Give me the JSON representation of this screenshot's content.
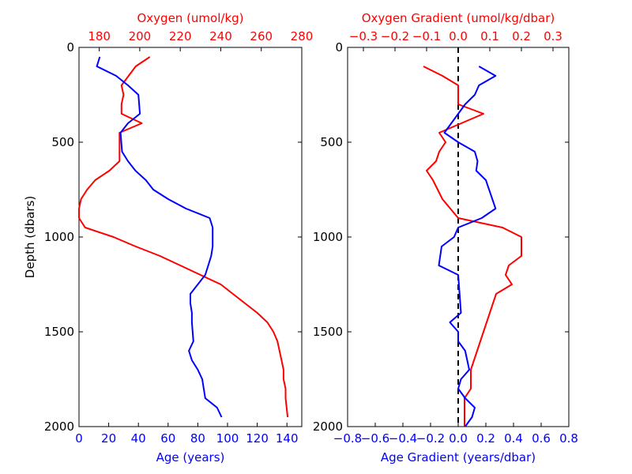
{
  "chart_data": [
    {
      "type": "line",
      "ylabel": "Depth (dbars)",
      "ylim": [
        2000,
        0
      ],
      "yticks": [
        0,
        500,
        1000,
        1500,
        2000
      ],
      "bottom_axis": {
        "label": "Age (years)",
        "lim": [
          0,
          150
        ],
        "ticks": [
          0,
          20,
          40,
          60,
          80,
          100,
          120,
          140
        ],
        "color": "#0000ff"
      },
      "top_axis": {
        "label": "Oxygen (umol/kg)",
        "lim": [
          170,
          280
        ],
        "ticks": [
          180,
          200,
          220,
          240,
          260,
          280
        ],
        "color": "#ff0000"
      },
      "series": [
        {
          "axis": "top",
          "color": "#ff0000",
          "x": [
            205,
            198,
            191,
            192,
            191,
            191,
            201,
            190,
            190,
            185,
            178,
            174,
            171,
            170,
            170,
            173,
            187,
            198,
            210,
            220,
            230,
            240,
            246,
            252,
            258,
            263,
            266,
            268,
            269,
            270,
            271,
            271,
            272,
            272,
            273
          ],
          "y": [
            50,
            100,
            200,
            250,
            300,
            350,
            400,
            450,
            600,
            650,
            700,
            750,
            800,
            850,
            900,
            950,
            1000,
            1050,
            1100,
            1150,
            1200,
            1250,
            1300,
            1350,
            1400,
            1450,
            1500,
            1550,
            1600,
            1650,
            1700,
            1750,
            1800,
            1850,
            1950
          ]
        },
        {
          "axis": "bottom",
          "color": "#0000ff",
          "x": [
            14,
            12,
            25,
            33,
            40,
            41,
            33,
            28,
            29,
            33,
            38,
            45,
            50,
            60,
            72,
            88,
            90,
            90,
            90,
            89,
            87,
            85,
            80,
            75,
            75,
            76,
            76,
            77,
            74,
            76,
            80,
            83,
            84,
            85,
            93,
            96
          ],
          "y": [
            50,
            100,
            150,
            200,
            250,
            350,
            400,
            450,
            550,
            600,
            650,
            700,
            750,
            800,
            850,
            900,
            950,
            1000,
            1050,
            1100,
            1150,
            1200,
            1250,
            1300,
            1350,
            1400,
            1450,
            1550,
            1600,
            1650,
            1700,
            1750,
            1800,
            1850,
            1900,
            1950
          ]
        }
      ]
    },
    {
      "type": "line",
      "ylim": [
        2000,
        0
      ],
      "yticks": [
        0,
        500,
        1000,
        1500,
        2000
      ],
      "bottom_axis": {
        "label": "Age Gradient (years/dbar)",
        "lim": [
          -0.8,
          0.8
        ],
        "ticks": [
          -0.8,
          -0.6,
          -0.4,
          -0.2,
          0.0,
          0.2,
          0.4,
          0.6,
          0.8
        ],
        "tick_labels": [
          "−0.8",
          "−0.6",
          "−0.4",
          "−0.2",
          "0.0",
          "0.2",
          "0.4",
          "0.6",
          "0.8"
        ],
        "color": "#0000ff"
      },
      "top_axis": {
        "label": "Oxygen Gradient (umol/kg/dbar)",
        "lim": [
          -0.35,
          0.35
        ],
        "ticks": [
          -0.3,
          -0.2,
          -0.1,
          0.0,
          0.1,
          0.2,
          0.3
        ],
        "tick_labels": [
          "−0.3",
          "−0.2",
          "−0.1",
          "0.0",
          "0.1",
          "0.2",
          "0.3"
        ],
        "color": "#ff0000"
      },
      "reference_line": {
        "x": 0.0,
        "style": "dashed",
        "color": "#000000"
      },
      "series": [
        {
          "axis": "top",
          "color": "#ff0000",
          "x": [
            -0.11,
            -0.05,
            0.0,
            0.0,
            0.08,
            -0.06,
            -0.04,
            -0.06,
            -0.07,
            -0.1,
            -0.08,
            -0.05,
            0.0,
            0.14,
            0.2,
            0.2,
            0.16,
            0.15,
            0.17,
            0.12,
            0.1,
            0.08,
            0.07,
            0.05,
            0.04,
            0.04,
            0.02,
            0.02,
            0.02
          ],
          "y": [
            100,
            150,
            200,
            300,
            350,
            450,
            500,
            550,
            600,
            650,
            700,
            800,
            900,
            950,
            1000,
            1100,
            1150,
            1200,
            1250,
            1300,
            1400,
            1500,
            1550,
            1650,
            1700,
            1800,
            1850,
            1950,
            2000
          ]
        },
        {
          "axis": "bottom",
          "color": "#0000ff",
          "x": [
            0.15,
            0.27,
            0.15,
            0.12,
            0.05,
            -0.05,
            -0.1,
            0.0,
            0.12,
            0.14,
            0.13,
            0.2,
            0.27,
            0.17,
            0.0,
            -0.03,
            -0.12,
            -0.14,
            0.0,
            0.02,
            -0.06,
            0.0,
            0.0,
            0.05,
            0.08,
            0.02,
            0.0,
            0.05,
            0.12,
            0.1,
            0.05
          ],
          "y": [
            100,
            150,
            200,
            250,
            300,
            400,
            450,
            500,
            550,
            600,
            650,
            700,
            850,
            900,
            950,
            1000,
            1050,
            1150,
            1200,
            1400,
            1450,
            1500,
            1550,
            1600,
            1700,
            1750,
            1800,
            1850,
            1900,
            1950,
            2000
          ]
        }
      ]
    }
  ]
}
